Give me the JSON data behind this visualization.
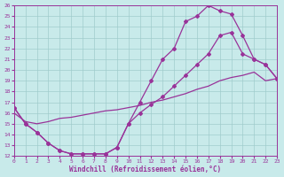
{
  "xlabel": "Windchill (Refroidissement éolien,°C)",
  "xlim": [
    0,
    23
  ],
  "ylim": [
    12,
    26
  ],
  "xticks": [
    0,
    1,
    2,
    3,
    4,
    5,
    6,
    7,
    8,
    9,
    10,
    11,
    12,
    13,
    14,
    15,
    16,
    17,
    18,
    19,
    20,
    21,
    22,
    23
  ],
  "yticks": [
    12,
    13,
    14,
    15,
    16,
    17,
    18,
    19,
    20,
    21,
    22,
    23,
    24,
    25,
    26
  ],
  "background_color": "#c8eaea",
  "grid_color": "#a0cccc",
  "line_color": "#993399",
  "line1_x": [
    0,
    1,
    2,
    3,
    4,
    5,
    6,
    7,
    8,
    9,
    10,
    11,
    12,
    13,
    14,
    15,
    16,
    17,
    18,
    19,
    20,
    21,
    22,
    23
  ],
  "line1_y": [
    16.5,
    15.0,
    14.2,
    13.2,
    12.5,
    12.2,
    12.2,
    12.2,
    12.2,
    12.8,
    15.0,
    17.0,
    19.0,
    21.0,
    22.0,
    24.5,
    25.0,
    26.0,
    25.5,
    25.2,
    23.2,
    21.0,
    20.5,
    19.2
  ],
  "line2_x": [
    0,
    1,
    2,
    3,
    4,
    5,
    6,
    7,
    8,
    9,
    10,
    11,
    12,
    13,
    14,
    15,
    16,
    17,
    18,
    19,
    20,
    21,
    22,
    23
  ],
  "line2_y": [
    16.5,
    15.0,
    14.2,
    13.2,
    12.5,
    12.2,
    12.2,
    12.2,
    12.2,
    12.8,
    15.0,
    16.0,
    16.8,
    17.5,
    18.5,
    19.5,
    20.5,
    21.5,
    23.2,
    23.5,
    21.5,
    21.0,
    20.5,
    19.2
  ],
  "line3_x": [
    0,
    1,
    2,
    3,
    4,
    5,
    6,
    7,
    8,
    9,
    10,
    11,
    12,
    13,
    14,
    15,
    16,
    17,
    18,
    19,
    20,
    21,
    22,
    23
  ],
  "line3_y": [
    16.0,
    15.2,
    15.0,
    15.2,
    15.5,
    15.6,
    15.8,
    16.0,
    16.2,
    16.3,
    16.5,
    16.7,
    17.0,
    17.2,
    17.5,
    17.8,
    18.2,
    18.5,
    19.0,
    19.3,
    19.5,
    19.8,
    19.0,
    19.2
  ]
}
